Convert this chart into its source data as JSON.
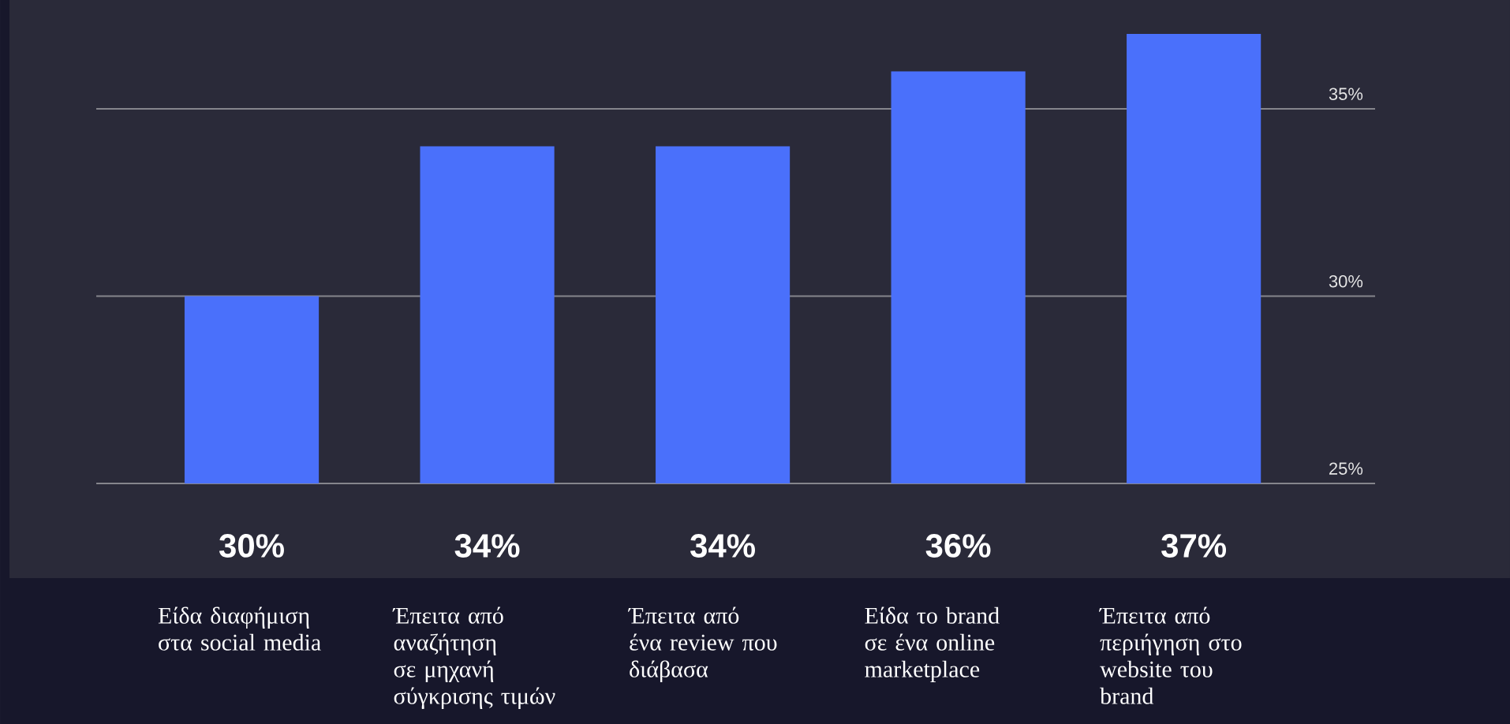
{
  "chart_data": {
    "type": "bar",
    "categories": [
      "Είδα διαφήμιση στα social media",
      "Έπειτα από αναζήτηση σε μηχανή σύγκρισης τιμών",
      "Έπειτα από ένα review που διάβασα",
      "Είδα το brand σε ένα online marketplace",
      "Έπειτα από περιήγηση στο website του brand"
    ],
    "values": [
      30,
      34,
      34,
      36,
      37
    ],
    "value_labels": [
      "30%",
      "34%",
      "34%",
      "36%",
      "37%"
    ],
    "color": "#4a70fb",
    "ylim": [
      25,
      37
    ],
    "yticks": [
      {
        "value": 25,
        "label": "25%"
      },
      {
        "value": 30,
        "label": "30%"
      },
      {
        "value": 35,
        "label": "35%"
      }
    ],
    "grid": "y"
  }
}
